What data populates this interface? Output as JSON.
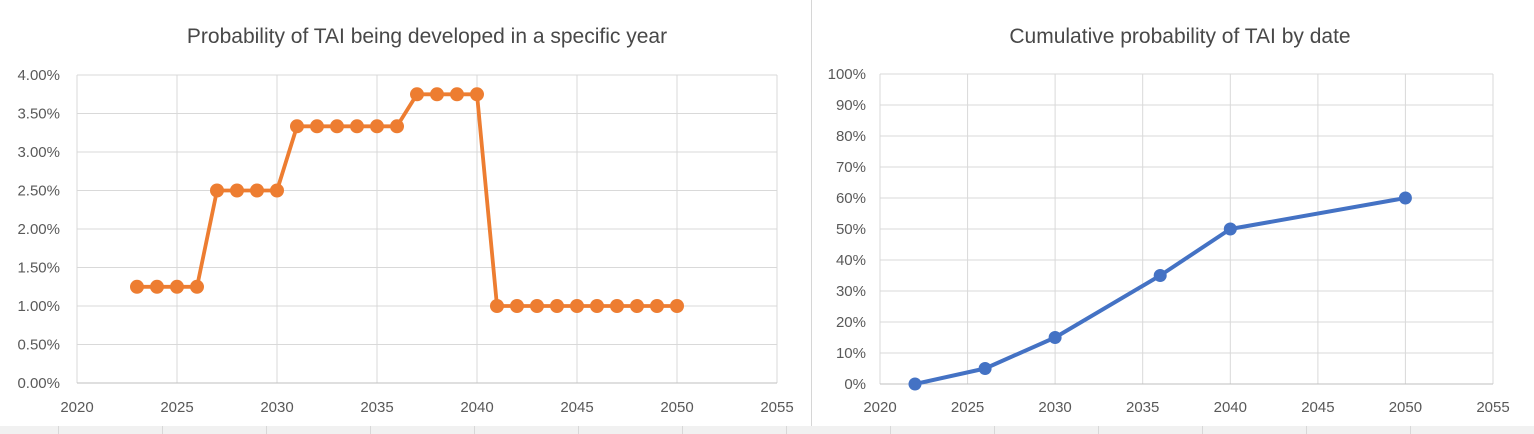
{
  "style": {
    "grid_color": "#d9d9d9",
    "axis_color": "#bfbfbf",
    "text_color": "#595959",
    "title_color": "#484848",
    "background": "#ffffff"
  },
  "chart_data": [
    {
      "type": "line",
      "title": "Probability of TAI being developed in a specific year",
      "color": "#ED7D31",
      "grid": true,
      "legend": "none",
      "xlim": [
        2020,
        2055
      ],
      "ylim": [
        0,
        4
      ],
      "x_tick_values": [
        2020,
        2025,
        2030,
        2035,
        2040,
        2045,
        2050,
        2055
      ],
      "x_tick_labels": [
        "2020",
        "2025",
        "2030",
        "2035",
        "2040",
        "2045",
        "2050",
        "2055"
      ],
      "y_tick_values": [
        0,
        0.5,
        1,
        1.5,
        2,
        2.5,
        3,
        3.5,
        4
      ],
      "y_tick_labels": [
        "0.00%",
        "0.50%",
        "1.00%",
        "1.50%",
        "2.00%",
        "2.50%",
        "3.00%",
        "3.50%",
        "4.00%"
      ],
      "points": [
        [
          2023,
          1.25
        ],
        [
          2024,
          1.25
        ],
        [
          2025,
          1.25
        ],
        [
          2026,
          1.25
        ],
        [
          2027,
          2.5
        ],
        [
          2028,
          2.5
        ],
        [
          2029,
          2.5
        ],
        [
          2030,
          2.5
        ],
        [
          2031,
          3.3333
        ],
        [
          2032,
          3.3333
        ],
        [
          2033,
          3.3333
        ],
        [
          2034,
          3.3333
        ],
        [
          2035,
          3.3333
        ],
        [
          2036,
          3.3333
        ],
        [
          2037,
          3.75
        ],
        [
          2038,
          3.75
        ],
        [
          2039,
          3.75
        ],
        [
          2040,
          3.75
        ],
        [
          2041,
          1.0
        ],
        [
          2042,
          1.0
        ],
        [
          2043,
          1.0
        ],
        [
          2044,
          1.0
        ],
        [
          2045,
          1.0
        ],
        [
          2046,
          1.0
        ],
        [
          2047,
          1.0
        ],
        [
          2048,
          1.0
        ],
        [
          2049,
          1.0
        ],
        [
          2050,
          1.0
        ]
      ]
    },
    {
      "type": "line",
      "title": "Cumulative probability of TAI by date",
      "color": "#4472C4",
      "grid": true,
      "legend": "none",
      "xlim": [
        2020,
        2055
      ],
      "ylim": [
        0,
        100
      ],
      "x_tick_values": [
        2020,
        2025,
        2030,
        2035,
        2040,
        2045,
        2050,
        2055
      ],
      "x_tick_labels": [
        "2020",
        "2025",
        "2030",
        "2035",
        "2040",
        "2045",
        "2050",
        "2055"
      ],
      "y_tick_values": [
        0,
        10,
        20,
        30,
        40,
        50,
        60,
        70,
        80,
        90,
        100
      ],
      "y_tick_labels": [
        "0%",
        "10%",
        "20%",
        "30%",
        "40%",
        "50%",
        "60%",
        "70%",
        "80%",
        "90%",
        "100%"
      ],
      "points": [
        [
          2022,
          0
        ],
        [
          2026,
          5
        ],
        [
          2030,
          15
        ],
        [
          2036,
          35
        ],
        [
          2040,
          50
        ],
        [
          2050,
          60
        ]
      ]
    }
  ]
}
